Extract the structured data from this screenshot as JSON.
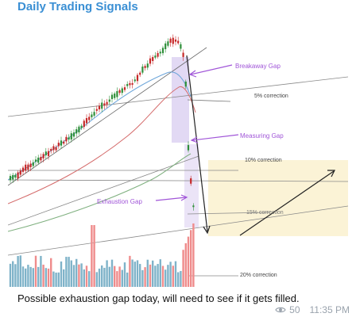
{
  "channel": {
    "title": "Daily Trading Signals"
  },
  "chart": {
    "annotations": {
      "breakaway_gap": "Breakaway Gap",
      "measuring_gap": "Measuring Gap",
      "exhaustion_gap": "Exhaustion Gap"
    },
    "corrections": {
      "five": "5% correction",
      "ten": "10% correction",
      "fifteen": "15% correction",
      "twenty": "20% correction"
    },
    "colors": {
      "up_candle": "#2f8f3a",
      "down_candle": "#c62828",
      "volume": "#7fb3c9",
      "volume_spike": "#ef8c8c",
      "annotation": "#a055d8",
      "highlight_zone": "#d8ccf0",
      "target_zone": "#fbf2d2"
    }
  },
  "message": {
    "text": "Possible exhaustion gap today, will need to see if it gets filled.",
    "views": "50",
    "time": "11:35 PM"
  }
}
